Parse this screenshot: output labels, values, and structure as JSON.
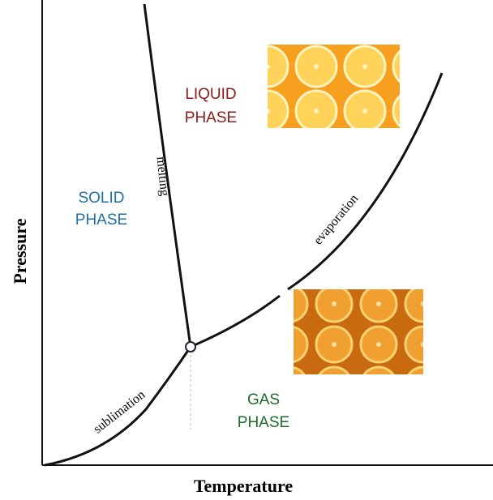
{
  "axes": {
    "y_label": "Pressure",
    "x_label": "Temperature"
  },
  "regions": {
    "solid": [
      "SOLID",
      "PHASE"
    ],
    "liquid": [
      "LIQUID",
      "PHASE"
    ],
    "gas": [
      "GAS",
      "PHASE"
    ]
  },
  "curves": {
    "melting": "melting",
    "evaporation": "evaporation",
    "sublimation": "sublimation"
  }
}
